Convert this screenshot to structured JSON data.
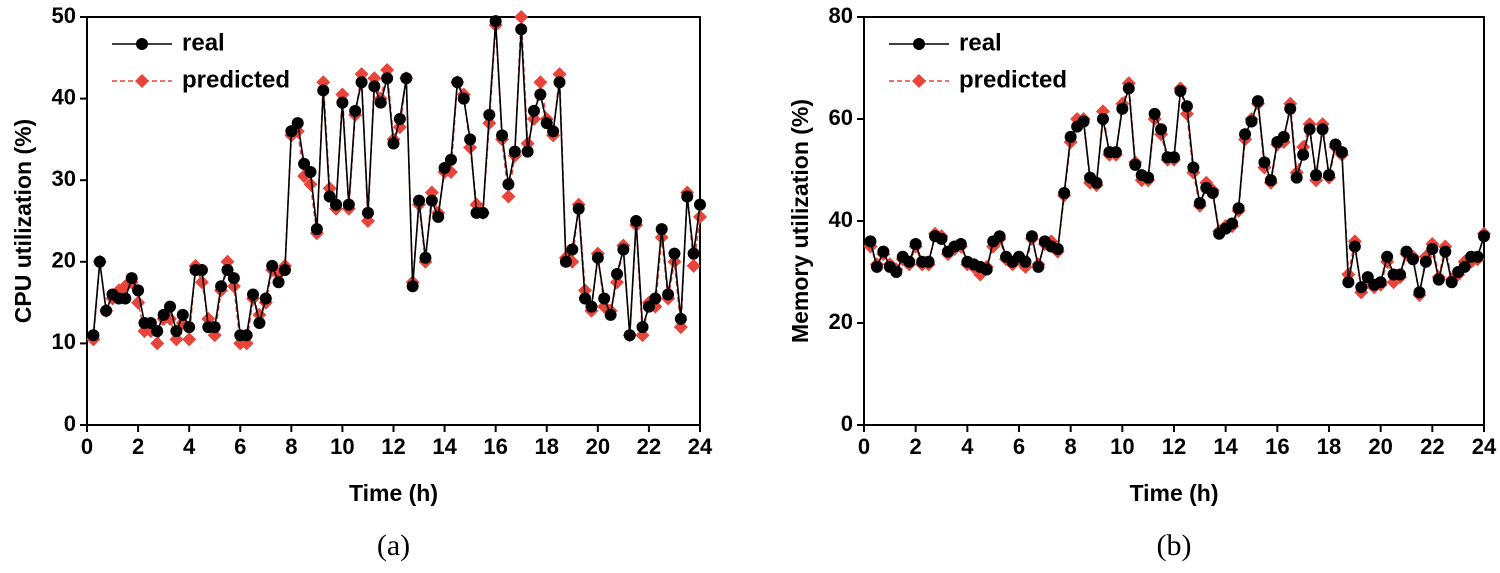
{
  "chart_data": [
    {
      "type": "line",
      "x_label": "Time (h)",
      "y_label": "CPU utilization (%)",
      "caption": "(a)",
      "legend_position": "upper left",
      "x": [
        0.25,
        0.5,
        0.75,
        1,
        1.25,
        1.5,
        1.75,
        2,
        2.25,
        2.5,
        2.75,
        3,
        3.25,
        3.5,
        3.75,
        4,
        4.25,
        4.5,
        4.75,
        5,
        5.25,
        5.5,
        5.75,
        6,
        6.25,
        6.5,
        6.75,
        7,
        7.25,
        7.5,
        7.75,
        8,
        8.25,
        8.5,
        8.75,
        9,
        9.25,
        9.5,
        9.75,
        10,
        10.25,
        10.5,
        10.75,
        11,
        11.25,
        11.5,
        11.75,
        12,
        12.25,
        12.5,
        12.75,
        13,
        13.25,
        13.5,
        13.75,
        14,
        14.25,
        14.5,
        14.75,
        15,
        15.25,
        15.5,
        15.75,
        16,
        16.25,
        16.5,
        16.75,
        17,
        17.25,
        17.5,
        17.75,
        18,
        18.25,
        18.5,
        18.75,
        19,
        19.25,
        19.5,
        19.75,
        20,
        20.25,
        20.5,
        20.75,
        21,
        21.25,
        21.5,
        21.75,
        22,
        22.25,
        22.5,
        22.75,
        23,
        23.25,
        23.5,
        23.75,
        24
      ],
      "xlim": [
        0,
        24
      ],
      "xticks": [
        0,
        2,
        4,
        6,
        8,
        10,
        12,
        14,
        16,
        18,
        20,
        22,
        24
      ],
      "ylim": [
        0,
        50
      ],
      "yticks": [
        0,
        10,
        20,
        30,
        40,
        50
      ],
      "series": [
        {
          "name": "real",
          "color": "#000000",
          "marker": "circle",
          "values": [
            11,
            20,
            14,
            16,
            15.5,
            15.5,
            18,
            16.5,
            12.5,
            12.5,
            11.5,
            13.5,
            14.5,
            11.5,
            13.5,
            12,
            19,
            19,
            12,
            12,
            17,
            19,
            18,
            11,
            11,
            16,
            12.5,
            15.5,
            19.5,
            17.5,
            19,
            36,
            37,
            32,
            31,
            24,
            41,
            28,
            27,
            39.5,
            27,
            38.5,
            42,
            26,
            41.5,
            39.5,
            42.5,
            34.5,
            37.5,
            42.5,
            17,
            27.5,
            20.5,
            27.5,
            25.5,
            31.5,
            32.5,
            42,
            40,
            35,
            26,
            26,
            38,
            49.5,
            35.5,
            29.5,
            33.5,
            48.5,
            33.5,
            38.5,
            40.5,
            37,
            36,
            42,
            20,
            21.5,
            26.5,
            15.5,
            14.5,
            20.5,
            15.5,
            13.5,
            18.5,
            21.5,
            11,
            25,
            12,
            14.5,
            15.5,
            24,
            16,
            21,
            13,
            28,
            21,
            27
          ]
        },
        {
          "name": "predicted",
          "color": "#e8443a",
          "marker": "diamond",
          "values": [
            10.5,
            20,
            14,
            15.5,
            16.5,
            17,
            17.5,
            15,
            11.5,
            11.5,
            10,
            13,
            13,
            10.5,
            12.5,
            10.5,
            19.5,
            17.5,
            13,
            11,
            16.5,
            20,
            17,
            10,
            10,
            15.5,
            13.5,
            15,
            19,
            18.5,
            19.5,
            35.5,
            36,
            30.5,
            29.5,
            23.5,
            42,
            29,
            26.5,
            40.5,
            26.5,
            38,
            43,
            25,
            42.5,
            40,
            43.5,
            35,
            36.5,
            42.5,
            17.5,
            27,
            20,
            28.5,
            26,
            31,
            31,
            42,
            40.5,
            34,
            27,
            26,
            37,
            49,
            35,
            28,
            33,
            50,
            34.5,
            37.5,
            42,
            37.5,
            35.5,
            43,
            20.5,
            20,
            27,
            16.5,
            14,
            21,
            14.5,
            14,
            17.5,
            22,
            11,
            24.5,
            11,
            15,
            14.5,
            23,
            15.5,
            20,
            12,
            28.5,
            19.5,
            25.5
          ]
        }
      ]
    },
    {
      "type": "line",
      "x_label": "Time (h)",
      "y_label": "Memory utilization (%)",
      "caption": "(b)",
      "legend_position": "upper left",
      "x": [
        0.25,
        0.5,
        0.75,
        1,
        1.25,
        1.5,
        1.75,
        2,
        2.25,
        2.5,
        2.75,
        3,
        3.25,
        3.5,
        3.75,
        4,
        4.25,
        4.5,
        4.75,
        5,
        5.25,
        5.5,
        5.75,
        6,
        6.25,
        6.5,
        6.75,
        7,
        7.25,
        7.5,
        7.75,
        8,
        8.25,
        8.5,
        8.75,
        9,
        9.25,
        9.5,
        9.75,
        10,
        10.25,
        10.5,
        10.75,
        11,
        11.25,
        11.5,
        11.75,
        12,
        12.25,
        12.5,
        12.75,
        13,
        13.25,
        13.5,
        13.75,
        14,
        14.25,
        14.5,
        14.75,
        15,
        15.25,
        15.5,
        15.75,
        16,
        16.25,
        16.5,
        16.75,
        17,
        17.25,
        17.5,
        17.75,
        18,
        18.25,
        18.5,
        18.75,
        19,
        19.25,
        19.5,
        19.75,
        20,
        20.25,
        20.5,
        20.75,
        21,
        21.25,
        21.5,
        21.75,
        22,
        22.25,
        22.5,
        22.75,
        23,
        23.25,
        23.5,
        23.75,
        24
      ],
      "xlim": [
        0,
        24
      ],
      "xticks": [
        0,
        2,
        4,
        6,
        8,
        10,
        12,
        14,
        16,
        18,
        20,
        22,
        24
      ],
      "ylim": [
        0,
        80
      ],
      "yticks": [
        0,
        20,
        40,
        60,
        80
      ],
      "series": [
        {
          "name": "real",
          "color": "#000000",
          "marker": "circle",
          "values": [
            36,
            31,
            34,
            31,
            30,
            33,
            32,
            35.5,
            32,
            32,
            37,
            36.5,
            34,
            35,
            35.5,
            32,
            31.5,
            31,
            30.5,
            36,
            37,
            33,
            32,
            33,
            32,
            37,
            31,
            36,
            35,
            34.5,
            45.5,
            56.5,
            58.5,
            59.5,
            48.5,
            47.5,
            60,
            53.5,
            53.5,
            62,
            66,
            51,
            49,
            48.5,
            61,
            58,
            52.5,
            52.5,
            65.5,
            62.5,
            50.5,
            43.5,
            46.5,
            45.5,
            37.5,
            38.5,
            39.5,
            42.5,
            57,
            59.5,
            63.5,
            51.5,
            48,
            55.5,
            56.5,
            62,
            48.5,
            53,
            58,
            49,
            58,
            49,
            55,
            53.5,
            28,
            35,
            27,
            29,
            27.5,
            28,
            33,
            29.5,
            29.5,
            34,
            32.5,
            26,
            32,
            34.5,
            28.5,
            34,
            28,
            30,
            31,
            33,
            33,
            37
          ]
        },
        {
          "name": "predicted",
          "color": "#e8443a",
          "marker": "diamond",
          "values": [
            35,
            31.5,
            33.5,
            31.5,
            30.5,
            32.5,
            31.5,
            35,
            31.5,
            31.5,
            37.5,
            37,
            33.5,
            34.5,
            35,
            31.5,
            31,
            29.5,
            31,
            35,
            36.5,
            32.5,
            31.5,
            32.5,
            31,
            36.5,
            31.5,
            35.5,
            36,
            34,
            45,
            55.5,
            60,
            60,
            47.5,
            47,
            61.5,
            53,
            53,
            63,
            67,
            51.5,
            48,
            48,
            60,
            57,
            52,
            52,
            66,
            61,
            49.5,
            43,
            47.5,
            46,
            38,
            39,
            39,
            42,
            56,
            60,
            63,
            50.5,
            47.5,
            55,
            55.5,
            63,
            49.5,
            54.5,
            59,
            48,
            59,
            48.5,
            54.5,
            53,
            29.5,
            36,
            26,
            28,
            27,
            27.5,
            32,
            28,
            29,
            33.5,
            33,
            25.5,
            33,
            35.5,
            29,
            35,
            28.5,
            29.5,
            32,
            32,
            32.5,
            37.5
          ]
        }
      ]
    }
  ]
}
